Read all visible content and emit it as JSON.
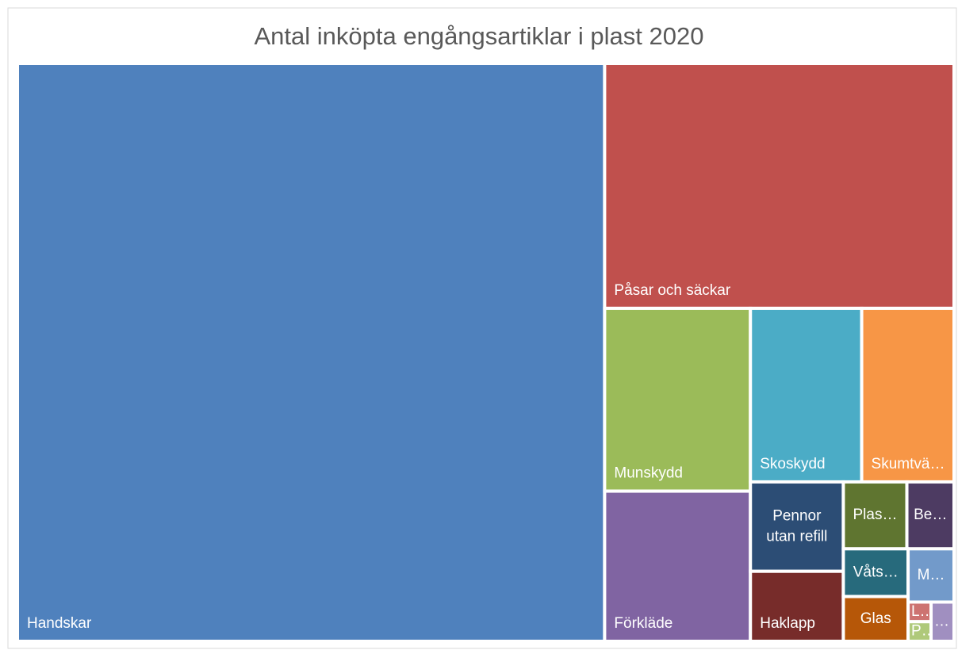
{
  "chart_data": {
    "type": "treemap",
    "title": "Antal inköpta engångsartiklar i plast 2020",
    "categories": [
      "Handskar",
      "Påsar och säckar",
      "Munskydd",
      "Förkläde",
      "Skoskydd",
      "Skumtvä…",
      "Pennor utan refill",
      "Haklapp",
      "Plas…",
      "Be…",
      "Våts…",
      "Glas",
      "M…",
      "L…",
      "P…",
      "…"
    ],
    "values": [
      5270,
      1329,
      414,
      340,
      300,
      249,
      129,
      101,
      66,
      49,
      48,
      45,
      38,
      7,
      7,
      14
    ],
    "colors": [
      "#4f81bd",
      "#c0504d",
      "#9bbb59",
      "#8064a2",
      "#4bacc6",
      "#f79646",
      "#2c4d75",
      "#772c2a",
      "#5f7530",
      "#4d3b62",
      "#276a7c",
      "#b65708",
      "#729aca",
      "#cd7371",
      "#afc97a",
      "#a08fc0"
    ]
  }
}
